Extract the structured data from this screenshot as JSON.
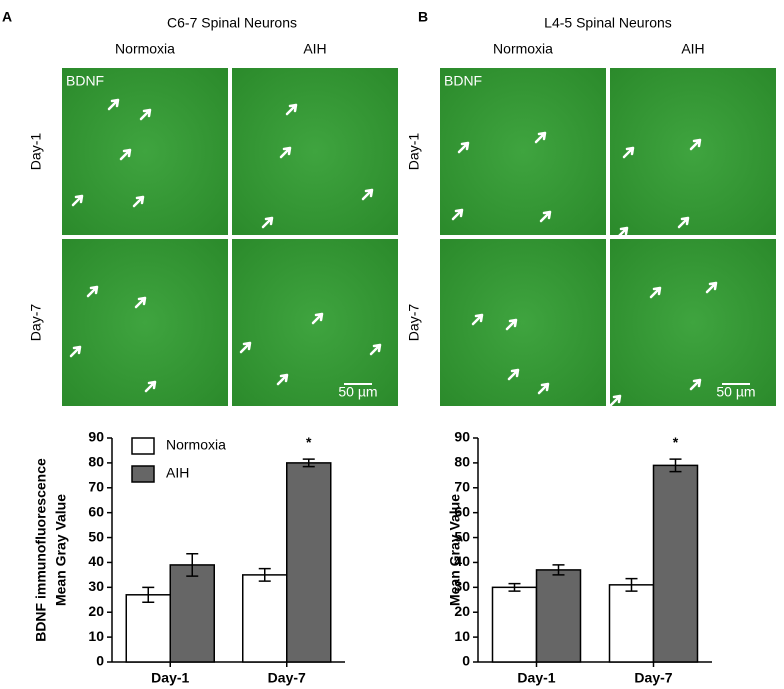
{
  "panels": [
    {
      "label": "A",
      "title": "C6-7 Spinal Neurons",
      "columns": [
        "Normoxia",
        "AIH"
      ],
      "rows": [
        "Day-1",
        "Day-7"
      ],
      "stain": "BDNF",
      "scale_bar": "50 µm"
    },
    {
      "label": "B",
      "title": "L4-5 Spinal Neurons",
      "columns": [
        "Normoxia",
        "AIH"
      ],
      "rows": [
        "Day-1",
        "Day-7"
      ],
      "stain": "BDNF",
      "scale_bar": "50 µm"
    }
  ],
  "chart_data": [
    {
      "type": "bar",
      "ylabel": [
        "BDNF immunofluorescence",
        "Mean Gray Value"
      ],
      "categories": [
        "Day-1",
        "Day-7"
      ],
      "series": [
        {
          "name": "Normoxia",
          "color": "#ffffff",
          "values": [
            27,
            35
          ],
          "errors": [
            3,
            2.5
          ]
        },
        {
          "name": "AIH",
          "color": "#666666",
          "values": [
            39,
            80
          ],
          "errors": [
            4.5,
            1.5
          ]
        }
      ],
      "ylim": [
        0,
        90
      ],
      "yticks": [
        0,
        10,
        20,
        30,
        40,
        50,
        60,
        70,
        80,
        90
      ],
      "legend": true,
      "significance": "*"
    },
    {
      "type": "bar",
      "ylabel": [
        "Mean Gray Value"
      ],
      "categories": [
        "Day-1",
        "Day-7"
      ],
      "series": [
        {
          "name": "Normoxia",
          "color": "#ffffff",
          "values": [
            30,
            31
          ],
          "errors": [
            1.5,
            2.5
          ]
        },
        {
          "name": "AIH",
          "color": "#666666",
          "values": [
            37,
            79
          ],
          "errors": [
            2,
            2.5
          ]
        }
      ],
      "ylim": [
        0,
        90
      ],
      "yticks": [
        0,
        10,
        20,
        30,
        40,
        50,
        60,
        70,
        80,
        90
      ],
      "legend": false,
      "significance": "*"
    }
  ]
}
